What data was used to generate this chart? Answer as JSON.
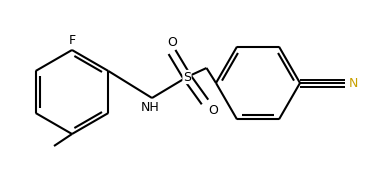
{
  "background_color": "#ffffff",
  "line_color": "#000000",
  "N_color": "#c8a000",
  "line_width": 1.5,
  "figsize": [
    3.71,
    1.8
  ],
  "dpi": 100,
  "xlim": [
    0,
    371
  ],
  "ylim": [
    0,
    180
  ]
}
